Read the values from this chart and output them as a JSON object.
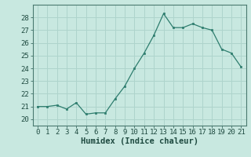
{
  "x": [
    0,
    1,
    2,
    3,
    4,
    5,
    6,
    7,
    8,
    9,
    10,
    11,
    12,
    13,
    14,
    15,
    16,
    17,
    18,
    19,
    20,
    21
  ],
  "y": [
    21.0,
    21.0,
    21.1,
    20.8,
    21.3,
    20.4,
    20.5,
    20.5,
    21.6,
    22.6,
    24.0,
    25.2,
    26.6,
    28.3,
    27.2,
    27.2,
    27.5,
    27.2,
    27.0,
    25.5,
    25.2,
    24.1
  ],
  "line_color": "#2e7d6e",
  "marker_color": "#2e7d6e",
  "bg_color": "#c8e8e0",
  "grid_color": "#aed4cc",
  "xlabel": "Humidex (Indice chaleur)",
  "ylim": [
    19.5,
    29.0
  ],
  "yticks": [
    20,
    21,
    22,
    23,
    24,
    25,
    26,
    27,
    28
  ],
  "xlim": [
    -0.5,
    21.5
  ],
  "xticks": [
    0,
    1,
    2,
    3,
    4,
    5,
    6,
    7,
    8,
    9,
    10,
    11,
    12,
    13,
    14,
    15,
    16,
    17,
    18,
    19,
    20,
    21
  ],
  "label_fontsize": 7.5,
  "tick_fontsize": 6.5
}
